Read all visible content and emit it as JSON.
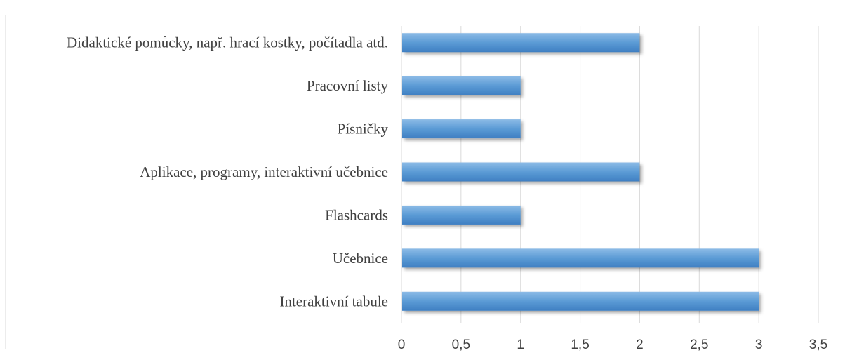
{
  "chart_data": {
    "type": "bar",
    "orientation": "horizontal",
    "categories": [
      "Interaktivní tabule",
      "Učebnice",
      "Flashcards",
      "Aplikace, programy, interaktivní učebnice",
      "Písničky",
      "Pracovní listy",
      "Didaktické pomůcky, např. hrací kostky, počítadla atd."
    ],
    "values": [
      3,
      3,
      1,
      2,
      1,
      1,
      2
    ],
    "xlim": [
      0,
      3.5
    ],
    "x_ticks": [
      "0",
      "0,5",
      "1",
      "1,5",
      "2",
      "2,5",
      "3",
      "3,5"
    ],
    "grid": true,
    "legend": "none",
    "bar_color": "#5b9bd5",
    "bar_color_dark": "#3f7fc2",
    "bar_color_light": "#8cbbe6",
    "title": "",
    "xlabel": "",
    "ylabel": ""
  }
}
